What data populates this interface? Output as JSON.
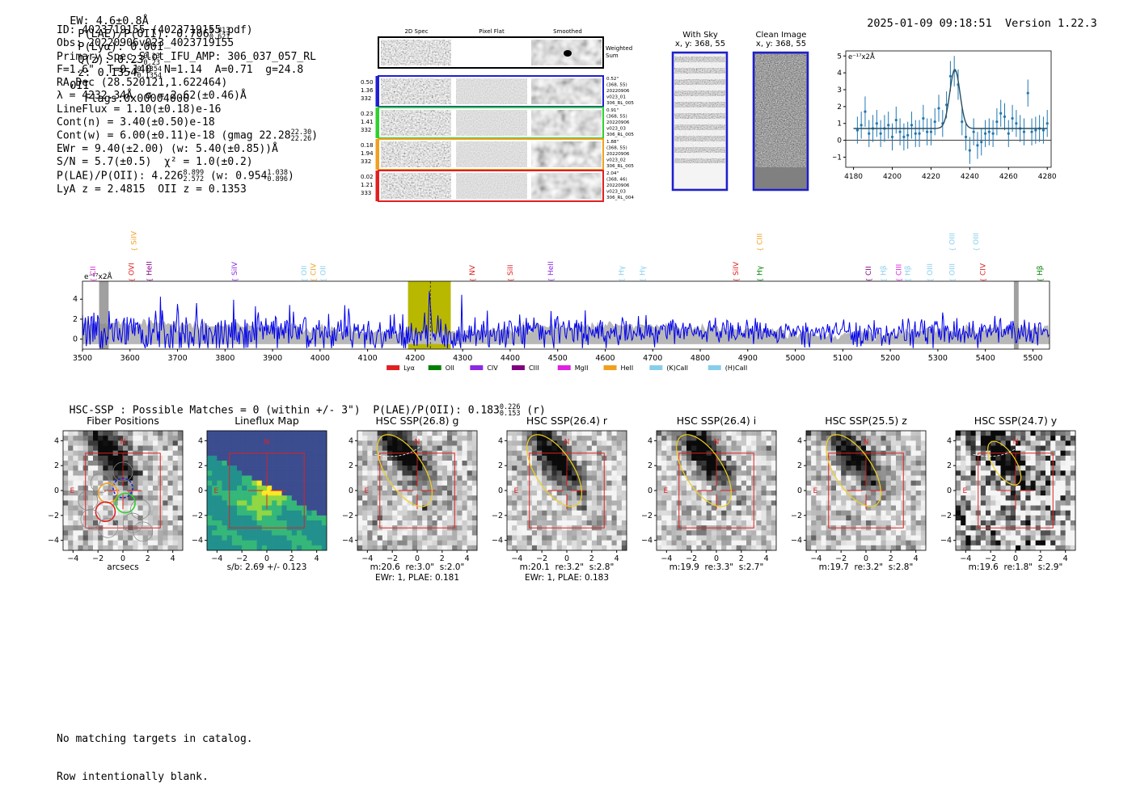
{
  "header": {
    "ew": "EW: 4.6±0.8Å",
    "plae_label": "P(LAE)/P(OII): 0.706",
    "plae_hi": "0.813",
    "plae_lo": "0.621",
    "plya": "P(Lyα): 0.001",
    "qz_label": "Q(z): 0.23",
    "qz_hi": "0.23",
    "qz_lo": "0.23",
    "z_label": "z: 0.1354",
    "z_hi": "0.1354",
    "z_lo": "0.1354",
    "z_line": "OII",
    "flags": "Flags:0x00004000",
    "datetime": "2025-01-09 09:18:51",
    "version": "Version 1.22.3"
  },
  "info": {
    "id": "ID: 4023719155 (4023719155.pdf)",
    "obs": "Obs: 20220906v023_4023719155",
    "primary": "Primary Spec_Slot_IFU_AMP: 306_037_057_RL",
    "params": "F=1.6\"  T=0.140  N=1.14  A=0.71  g=24.8",
    "radec": "RA,Dec (28.520121,1.622464)",
    "lambda": "λ = 4232.34Å  σ = 2.62(±0.46)Å",
    "lineflux": "LineFlux = 1.10(±0.18)e-16",
    "contn": "Cont(n) = 3.40(±0.50)e-18",
    "contw": "Cont(w) = 6.00(±0.11)e-18 (gmag 22.28",
    "contw_hi": "22.30",
    "contw_lo": "22.26",
    "ewr": "EWr = 9.40(±2.00) (w: 5.40(±0.85))Å",
    "sn": "S/N = 5.7(±0.5)  χ² = 1.0(±0.2)",
    "plae": "P(LAE)/P(OII): 4.226",
    "plae_hi": "8.899",
    "plae_lo": "2.572",
    "plae_w": "(w: 0.954",
    "plae_w_hi": "1.038",
    "plae_w_lo": "0.896",
    "lya_z": "LyA z = 2.4815  OII z = 0.1353"
  },
  "cutouts": {
    "col_2d": "2D Spec",
    "col_flat": "Pixel Flat",
    "col_smooth": "Smoothed",
    "weighted_sum": "Weighted Sum",
    "rows": [
      {
        "v1": "0.50",
        "v2": "1.36",
        "v3": "332",
        "color": "#1f1fd0",
        "r1": "0.52\"",
        "r2": "(368, 55)",
        "r3": "20220906",
        "r4": "v023_01",
        "r5": "306_RL_005"
      },
      {
        "v1": "0.23",
        "v2": "1.41",
        "v3": "332",
        "color": "#2ed12e",
        "r1": "0.91\"",
        "r2": "(368, 55)",
        "r3": "20220906",
        "r4": "v023_03",
        "r5": "306_RL_005"
      },
      {
        "v1": "0.18",
        "v2": "1.94",
        "v3": "332",
        "color": "#f0a020",
        "r1": "1.88\"",
        "r2": "(368, 55)",
        "r3": "20220906",
        "r4": "v023_02",
        "r5": "306_RL_005"
      },
      {
        "v1": "0.02",
        "v2": "1.21",
        "v3": "333",
        "color": "#e02020",
        "r1": "2.04\"",
        "r2": "(368, 46)",
        "r3": "20220906",
        "r4": "v023_03",
        "r5": "306_RL_004"
      }
    ],
    "with_sky_title": "With Sky",
    "with_sky_xy": "x, y: 368, 55",
    "clean_title": "Clean Image",
    "clean_xy": "x, y: 368, 55"
  },
  "line_fit_chart": {
    "type": "scatter",
    "ylabel": "e⁻¹⁷x2Å",
    "xlim": [
      4176,
      4282
    ],
    "ylim": [
      -1.6,
      5.3
    ],
    "xticks": [
      4180,
      4200,
      4220,
      4240,
      4260,
      4280
    ],
    "yticks": [
      -1,
      0,
      1,
      2,
      3,
      4,
      5
    ],
    "points_x": [
      4182,
      4184,
      4186,
      4188,
      4190,
      4192,
      4194,
      4196,
      4198,
      4200,
      4202,
      4204,
      4206,
      4208,
      4210,
      4212,
      4214,
      4216,
      4218,
      4220,
      4222,
      4224,
      4226,
      4228,
      4230,
      4232,
      4234,
      4236,
      4238,
      4240,
      4242,
      4244,
      4246,
      4248,
      4250,
      4252,
      4254,
      4256,
      4258,
      4260,
      4262,
      4264,
      4266,
      4268,
      4270,
      4272,
      4274,
      4276,
      4278,
      4280
    ],
    "points_y": [
      0.6,
      0.9,
      1.7,
      0.4,
      0.7,
      1.0,
      0.4,
      0.7,
      0.9,
      0.2,
      1.2,
      0.5,
      0.2,
      0.3,
      0.9,
      0.4,
      0.4,
      1.3,
      0.5,
      0.5,
      1.1,
      1.9,
      1.0,
      2.1,
      3.8,
      4.1,
      3.3,
      1.1,
      0.2,
      -0.6,
      0.5,
      -0.3,
      -0.1,
      0.4,
      0.5,
      0.4,
      1.1,
      1.6,
      1.4,
      0.4,
      1.3,
      1.0,
      0.7,
      0.5,
      2.8,
      0.5,
      0.6,
      0.7,
      0.6,
      1.0
    ],
    "errors": [
      0.8,
      0.8,
      0.9,
      0.8,
      0.8,
      0.8,
      0.8,
      0.8,
      0.8,
      0.8,
      0.8,
      0.8,
      0.8,
      0.8,
      0.8,
      0.8,
      0.8,
      0.8,
      0.8,
      0.8,
      0.8,
      0.8,
      0.8,
      0.8,
      0.9,
      0.9,
      0.9,
      0.8,
      0.8,
      0.8,
      0.8,
      0.8,
      0.8,
      0.8,
      0.8,
      0.8,
      0.8,
      0.8,
      0.8,
      0.8,
      0.8,
      0.8,
      0.8,
      0.8,
      0.8,
      0.8,
      0.8,
      0.8,
      0.8,
      0.8
    ],
    "fit_continuum": 0.7,
    "fit_peak": 4.2,
    "fit_center": 4232.3,
    "fit_sigma": 2.62,
    "point_color": "#1f77b4",
    "fit_color": "#2a4d5e"
  },
  "spectrum": {
    "type": "line",
    "ylabel": "e⁻¹⁷x2Å",
    "xlim": [
      3500,
      5535
    ],
    "ylim": [
      -1.0,
      5.8
    ],
    "xticks": [
      3500,
      3600,
      3700,
      3800,
      3900,
      4000,
      4100,
      4200,
      4300,
      4400,
      4500,
      4600,
      4700,
      4800,
      4900,
      5000,
      5100,
      5200,
      5300,
      5400,
      5500
    ],
    "yticks": [
      0,
      2,
      4
    ],
    "line_color": "#0000ee",
    "error_color": "#b8b8b8",
    "highlight_window": [
      4185,
      4275
    ],
    "highlight_color": "#b8b800",
    "marked_wavelength": 4232,
    "masked_regions": [
      [
        3535,
        3555
      ],
      [
        5460,
        5470
      ]
    ],
    "lines": [
      {
        "label": "CII",
        "x": 3522,
        "color": "#e020e0",
        "tier": 0
      },
      {
        "label": "SiIV",
        "x": 3608,
        "color": "#f0a020",
        "tier": 1
      },
      {
        "label": "OVI",
        "x": 3603,
        "color": "#e02020",
        "tier": 0
      },
      {
        "label": "HeII",
        "x": 3640,
        "color": "#800080",
        "tier": 0
      },
      {
        "label": "SiIV",
        "x": 3820,
        "color": "#8a2be2",
        "tier": 0
      },
      {
        "label": "OII",
        "x": 3966,
        "color": "#87ceeb",
        "tier": 0
      },
      {
        "label": "CIV",
        "x": 3986,
        "color": "#f0a020",
        "tier": 0
      },
      {
        "label": "OII",
        "x": 4006,
        "color": "#87ceeb",
        "tier": 0
      },
      {
        "label": "NV",
        "x": 4320,
        "color": "#e02020",
        "tier": 0
      },
      {
        "label": "SiII",
        "x": 4400,
        "color": "#e02020",
        "tier": 0
      },
      {
        "label": "HeII",
        "x": 4485,
        "color": "#8a2be2",
        "tier": 0
      },
      {
        "label": "Hγ",
        "x": 4634,
        "color": "#87ceeb",
        "tier": 0
      },
      {
        "label": "Hγ",
        "x": 4678,
        "color": "#87ceeb",
        "tier": 0
      },
      {
        "label": "SiIV",
        "x": 4875,
        "color": "#e02020",
        "tier": 0
      },
      {
        "label": "CIII",
        "x": 4925,
        "color": "#f0a020",
        "tier": 1
      },
      {
        "label": "Hγ",
        "x": 4925,
        "color": "#008000",
        "tier": 0
      },
      {
        "label": "CII",
        "x": 5154,
        "color": "#800080",
        "tier": 0
      },
      {
        "label": "Hβ",
        "x": 5185,
        "color": "#87ceeb",
        "tier": 0
      },
      {
        "label": "CIII",
        "x": 5218,
        "color": "#e020e0",
        "tier": 0
      },
      {
        "label": "Hβ",
        "x": 5236,
        "color": "#87ceeb",
        "tier": 0
      },
      {
        "label": "OIII",
        "x": 5283,
        "color": "#87ceeb",
        "tier": 0
      },
      {
        "label": "OIII",
        "x": 5330,
        "color": "#87ceeb",
        "tier": 1
      },
      {
        "label": "OIII",
        "x": 5330,
        "color": "#87ceeb",
        "tier": 0
      },
      {
        "label": "OIII",
        "x": 5380,
        "color": "#87ceeb",
        "tier": 1
      },
      {
        "label": "CIV",
        "x": 5395,
        "color": "#e02020",
        "tier": 0
      },
      {
        "label": "Hβ",
        "x": 5515,
        "color": "#008000",
        "tier": 0
      }
    ],
    "legend": [
      {
        "label": "Lyα",
        "color": "#e02020"
      },
      {
        "label": "OII",
        "color": "#008000"
      },
      {
        "label": "CIV",
        "color": "#8a2be2"
      },
      {
        "label": "CIII",
        "color": "#800080"
      },
      {
        "label": "MgII",
        "color": "#e020e0"
      },
      {
        "label": "HeII",
        "color": "#f0a020"
      },
      {
        "label": "(K)CaII",
        "color": "#87ceeb"
      },
      {
        "label": "(H)CaII",
        "color": "#87ceeb"
      }
    ]
  },
  "hsc": {
    "summary": "HSC-SSP : Possible Matches = 0 (within +/- 3\")  P(LAE)/P(OII): 0.183",
    "summary_hi": "0.226",
    "summary_lo": "0.153",
    "summary_band": "(r)",
    "axis_ticks": [
      "−4",
      "−2",
      "0",
      "2",
      "4"
    ],
    "north": "N",
    "east": "E",
    "panels": [
      {
        "title": "Fiber Positions",
        "line1": "arcsecs",
        "line2": ""
      },
      {
        "title": "Lineflux Map",
        "line1": "s/b: 2.69 +/- 0.123",
        "line2": ""
      },
      {
        "title": "HSC SSP(26.8) g",
        "line1": "m:20.6  re:3.0\"  s:2.0\"",
        "line2": "EWr: 1, PLAE: 0.181"
      },
      {
        "title": "HSC SSP(26.4) r",
        "line1": "m:20.1  re:3.2\"  s:2.8\"",
        "line2": "EWr: 1, PLAE: 0.183"
      },
      {
        "title": "HSC SSP(26.4) i",
        "line1": "m:19.9  re:3.3\"  s:2.7\"",
        "line2": ""
      },
      {
        "title": "HSC SSP(25.5) z",
        "line1": "m:19.7  re:3.2\"  s:2.8\"",
        "line2": ""
      },
      {
        "title": "HSC SSP(24.7) y",
        "line1": "m:19.6  re:1.8\"  s:2.9\"",
        "line2": ""
      }
    ]
  },
  "footer": {
    "line1": "No matching targets in catalog.",
    "line2": "Row intentionally blank."
  }
}
